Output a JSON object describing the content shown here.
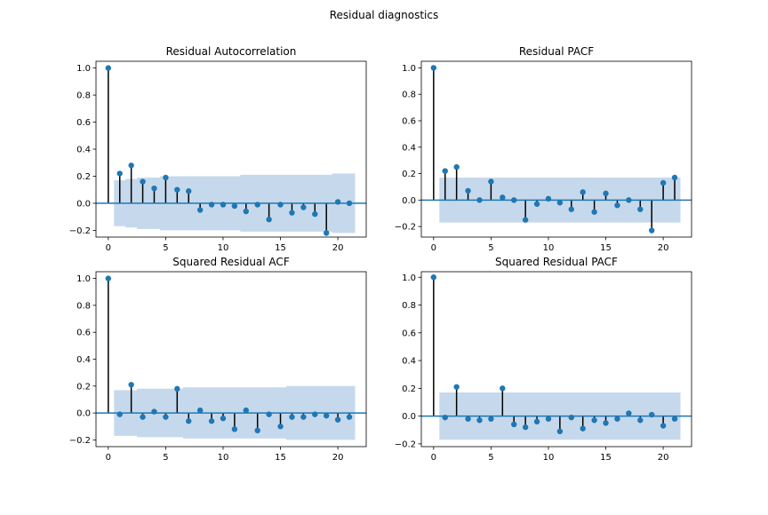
{
  "suptitle": "Residual diagnostics",
  "style": {
    "band_color": "#c6d9ec",
    "marker_color": "#1f77b4",
    "stem_color": "#000000",
    "zero_line_color": "#1f77b4"
  },
  "chart_data": [
    {
      "type": "stem",
      "title": "Residual Autocorrelation",
      "xlabel": "",
      "ylabel": "",
      "xlim": [
        -1.07,
        22.47
      ],
      "ylim": [
        -0.25,
        1.05
      ],
      "xticks": [
        0,
        5,
        10,
        15,
        20
      ],
      "yticks": [
        -0.2,
        0.0,
        0.2,
        0.4,
        0.6,
        0.8,
        1.0
      ],
      "ytick_labels": [
        "−0.2",
        "0.0",
        "0.2",
        "0.4",
        "0.6",
        "0.8",
        "1.0"
      ],
      "lags": [
        0,
        1,
        2,
        3,
        4,
        5,
        6,
        7,
        8,
        9,
        10,
        11,
        12,
        13,
        14,
        15,
        16,
        17,
        18,
        19,
        20,
        21
      ],
      "values": [
        1.0,
        0.22,
        0.28,
        0.16,
        0.11,
        0.19,
        0.1,
        0.09,
        -0.05,
        -0.01,
        -0.01,
        -0.02,
        -0.06,
        -0.01,
        -0.12,
        -0.01,
        -0.07,
        -0.03,
        -0.08,
        -0.22,
        0.01,
        0.0
      ],
      "confint_upper": [
        0.17,
        0.17,
        0.18,
        0.19,
        0.19,
        0.2,
        0.2,
        0.2,
        0.2,
        0.2,
        0.2,
        0.2,
        0.21,
        0.21,
        0.21,
        0.21,
        0.21,
        0.21,
        0.21,
        0.21,
        0.22,
        0.22
      ],
      "grid": false,
      "legend": "none"
    },
    {
      "type": "stem",
      "title": "Residual PACF",
      "xlabel": "",
      "ylabel": "",
      "xlim": [
        -1.07,
        22.47
      ],
      "ylim": [
        -0.28,
        1.05
      ],
      "xticks": [
        0,
        5,
        10,
        15,
        20
      ],
      "yticks": [
        -0.2,
        0.0,
        0.2,
        0.4,
        0.6,
        0.8,
        1.0
      ],
      "ytick_labels": [
        "−0.2",
        "0.0",
        "0.2",
        "0.4",
        "0.6",
        "0.8",
        "1.0"
      ],
      "lags": [
        0,
        1,
        2,
        3,
        4,
        5,
        6,
        7,
        8,
        9,
        10,
        11,
        12,
        13,
        14,
        15,
        16,
        17,
        18,
        19,
        20,
        21
      ],
      "values": [
        1.0,
        0.22,
        0.25,
        0.07,
        0.0,
        0.14,
        0.02,
        0.0,
        -0.15,
        -0.03,
        0.01,
        -0.02,
        -0.07,
        0.06,
        -0.09,
        0.05,
        -0.04,
        0.0,
        -0.07,
        -0.23,
        0.13,
        0.17
      ],
      "confint_upper": [
        0.17,
        0.17,
        0.17,
        0.17,
        0.17,
        0.17,
        0.17,
        0.17,
        0.17,
        0.17,
        0.17,
        0.17,
        0.17,
        0.17,
        0.17,
        0.17,
        0.17,
        0.17,
        0.17,
        0.17,
        0.17,
        0.17
      ],
      "grid": false,
      "legend": "none"
    },
    {
      "type": "stem",
      "title": "Squared Residual ACF",
      "xlabel": "",
      "ylabel": "",
      "xlim": [
        -1.07,
        22.47
      ],
      "ylim": [
        -0.25,
        1.05
      ],
      "xticks": [
        0,
        5,
        10,
        15,
        20
      ],
      "yticks": [
        -0.2,
        0.0,
        0.2,
        0.4,
        0.6,
        0.8,
        1.0
      ],
      "ytick_labels": [
        "−0.2",
        "0.0",
        "0.2",
        "0.4",
        "0.6",
        "0.8",
        "1.0"
      ],
      "lags": [
        0,
        1,
        2,
        3,
        4,
        5,
        6,
        7,
        8,
        9,
        10,
        11,
        12,
        13,
        14,
        15,
        16,
        17,
        18,
        19,
        20,
        21
      ],
      "values": [
        1.0,
        -0.01,
        0.21,
        -0.03,
        0.01,
        -0.03,
        0.18,
        -0.06,
        0.02,
        -0.06,
        -0.04,
        -0.12,
        0.02,
        -0.13,
        -0.01,
        -0.1,
        -0.03,
        -0.03,
        -0.01,
        -0.02,
        -0.05,
        -0.03
      ],
      "confint_upper": [
        0.17,
        0.17,
        0.17,
        0.18,
        0.18,
        0.18,
        0.18,
        0.19,
        0.19,
        0.19,
        0.19,
        0.19,
        0.19,
        0.19,
        0.19,
        0.19,
        0.2,
        0.2,
        0.2,
        0.2,
        0.2,
        0.2
      ],
      "grid": false,
      "legend": "none"
    },
    {
      "type": "stem",
      "title": "Squared Residual PACF",
      "xlabel": "",
      "ylabel": "",
      "xlim": [
        -1.07,
        22.47
      ],
      "ylim": [
        -0.22,
        1.04
      ],
      "xticks": [
        0,
        5,
        10,
        15,
        20
      ],
      "yticks": [
        -0.2,
        0.0,
        0.2,
        0.4,
        0.6,
        0.8,
        1.0
      ],
      "ytick_labels": [
        "−0.2",
        "0.0",
        "0.2",
        "0.4",
        "0.6",
        "0.8",
        "1.0"
      ],
      "lags": [
        0,
        1,
        2,
        3,
        4,
        5,
        6,
        7,
        8,
        9,
        10,
        11,
        12,
        13,
        14,
        15,
        16,
        17,
        18,
        19,
        20,
        21
      ],
      "values": [
        1.0,
        -0.01,
        0.21,
        -0.02,
        -0.03,
        -0.02,
        0.2,
        -0.06,
        -0.08,
        -0.04,
        -0.02,
        -0.11,
        -0.01,
        -0.09,
        -0.03,
        -0.05,
        -0.02,
        0.02,
        -0.03,
        0.01,
        -0.07,
        -0.02
      ],
      "confint_upper": [
        0.17,
        0.17,
        0.17,
        0.17,
        0.17,
        0.17,
        0.17,
        0.17,
        0.17,
        0.17,
        0.17,
        0.17,
        0.17,
        0.17,
        0.17,
        0.17,
        0.17,
        0.17,
        0.17,
        0.17,
        0.17,
        0.17
      ],
      "grid": false,
      "legend": "none"
    }
  ]
}
